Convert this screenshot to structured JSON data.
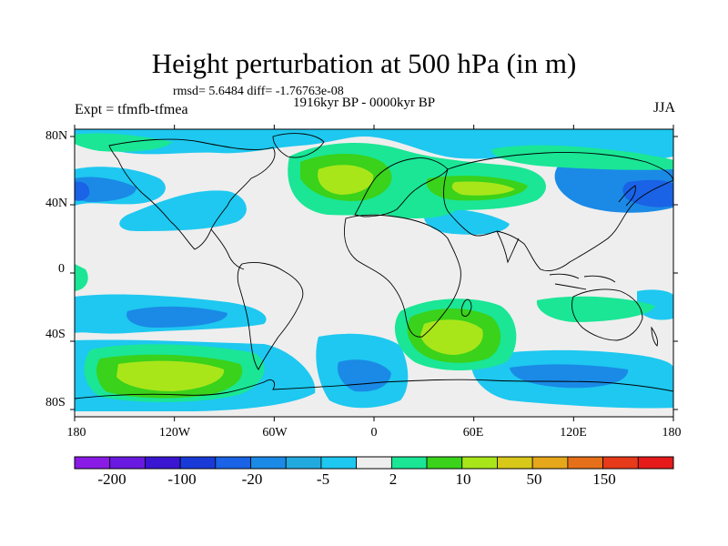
{
  "title": "Height perturbation at 500 hPa (in m)",
  "stats_line": "rmsd= 5.6484 diff= -1.76763e-08",
  "period_line": "1916kyr BP - 0000kyr BP",
  "experiment_label": "Expt = tfmfb-tfmea",
  "season_label": "JJA",
  "map": {
    "type": "filled-contour",
    "lat_labels": [
      "80N",
      "40N",
      "0",
      "40S",
      "80S"
    ],
    "lon_labels": [
      "180",
      "120W",
      "60W",
      "0",
      "60E",
      "120E",
      "180"
    ],
    "background_color": "#eeeeee",
    "coastline_color": "#000000"
  },
  "colorbar": {
    "colors": [
      "#8a1ae6",
      "#6a1ae0",
      "#3a16d2",
      "#1a3ad8",
      "#1a62e6",
      "#1a8ae6",
      "#22aadf",
      "#1ec8f0",
      "#eeeeee",
      "#1ae696",
      "#3ad21a",
      "#a8e61a",
      "#d8c81a",
      "#e6a81a",
      "#e6701a",
      "#e63a1a",
      "#e61a1a"
    ],
    "labels": [
      "-200",
      "-100",
      "-20",
      "-5",
      "2",
      "10",
      "50",
      "150"
    ]
  }
}
